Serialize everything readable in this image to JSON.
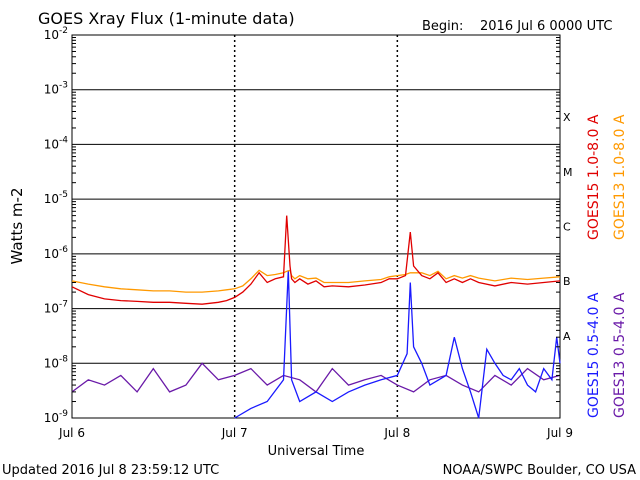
{
  "header": {
    "title": "GOES Xray Flux (1-minute data)",
    "begin_label": "Begin:",
    "begin_value": "2016 Jul 6 0000 UTC"
  },
  "footer": {
    "updated": "Updated 2016 Jul  8 23:59:12 UTC",
    "credit": "NOAA/SWPC Boulder, CO USA"
  },
  "colors": {
    "goes15_long": "#e00000",
    "goes13_long": "#ff9900",
    "goes15_short": "#1a1aff",
    "goes13_short": "#6a1aa8"
  },
  "chart_data": {
    "type": "line",
    "title": "GOES Xray Flux (1-minute data)",
    "xlabel": "Universal Time",
    "ylabel": "Watts m-2",
    "y_scale": "log",
    "ylim": [
      1e-09,
      0.01
    ],
    "y_ticks": [
      {
        "value": 0.01,
        "label": "10-2"
      },
      {
        "value": 0.001,
        "label": "10-3"
      },
      {
        "value": 0.0001,
        "label": "10-4"
      },
      {
        "value": 1e-05,
        "label": "10-5"
      },
      {
        "value": 1e-06,
        "label": "10-6"
      },
      {
        "value": 1e-07,
        "label": "10-7"
      },
      {
        "value": 1e-08,
        "label": "10-8"
      },
      {
        "value": 1e-09,
        "label": "10-9"
      }
    ],
    "x_unit": "days since 2016 Jul 6 0000 UTC",
    "xlim": [
      0,
      3
    ],
    "x_ticks": [
      {
        "value": 0,
        "label": "Jul 6"
      },
      {
        "value": 1,
        "label": "Jul 7"
      },
      {
        "value": 2,
        "label": "Jul 8"
      },
      {
        "value": 3,
        "label": "Jul 9"
      }
    ],
    "flare_classes": [
      {
        "label": "X",
        "value": 0.0001
      },
      {
        "label": "M",
        "value": 1e-05
      },
      {
        "label": "C",
        "value": 1e-06
      },
      {
        "label": "B",
        "value": 1e-07
      },
      {
        "label": "A",
        "value": 1e-08
      }
    ],
    "grid": true,
    "legend_position": "right",
    "series": [
      {
        "name": "GOES15 1.0-8.0 A",
        "color": "#e00000",
        "x": [
          0,
          0.1,
          0.2,
          0.3,
          0.4,
          0.5,
          0.6,
          0.7,
          0.8,
          0.9,
          0.95,
          1.0,
          1.05,
          1.1,
          1.15,
          1.2,
          1.25,
          1.3,
          1.32,
          1.34,
          1.35,
          1.37,
          1.4,
          1.45,
          1.5,
          1.55,
          1.6,
          1.7,
          1.8,
          1.9,
          1.95,
          2.0,
          2.05,
          2.08,
          2.1,
          2.15,
          2.2,
          2.25,
          2.3,
          2.35,
          2.4,
          2.45,
          2.5,
          2.6,
          2.7,
          2.8,
          2.9,
          3.0
        ],
        "values": [
          2.5e-07,
          1.8e-07,
          1.5e-07,
          1.4e-07,
          1.35e-07,
          1.3e-07,
          1.3e-07,
          1.25e-07,
          1.2e-07,
          1.3e-07,
          1.4e-07,
          1.6e-07,
          2e-07,
          2.8e-07,
          4.5e-07,
          3e-07,
          3.5e-07,
          3.8e-07,
          5e-06,
          6e-07,
          3.5e-07,
          3e-07,
          3.5e-07,
          2.8e-07,
          3.2e-07,
          2.5e-07,
          2.6e-07,
          2.5e-07,
          2.7e-07,
          3e-07,
          3.5e-07,
          3.5e-07,
          4e-07,
          2.5e-06,
          6e-07,
          4e-07,
          3.5e-07,
          4.5e-07,
          3e-07,
          3.5e-07,
          3e-07,
          3.5e-07,
          3e-07,
          2.6e-07,
          3e-07,
          2.8e-07,
          3e-07,
          3.2e-07
        ]
      },
      {
        "name": "GOES13 1.0-8.0 A",
        "color": "#ff9900",
        "x": [
          0,
          0.1,
          0.2,
          0.3,
          0.4,
          0.5,
          0.6,
          0.7,
          0.8,
          0.9,
          0.95,
          1.0,
          1.05,
          1.1,
          1.15,
          1.2,
          1.25,
          1.3,
          1.32,
          1.34,
          1.35,
          1.37,
          1.4,
          1.45,
          1.5,
          1.55,
          1.6,
          1.7,
          1.8,
          1.9,
          1.95,
          2.0,
          2.05,
          2.08,
          2.1,
          2.15,
          2.2,
          2.25,
          2.3,
          2.35,
          2.4,
          2.45,
          2.5,
          2.6,
          2.7,
          2.8,
          2.9,
          3.0
        ],
        "values": [
          3.2e-07,
          2.8e-07,
          2.5e-07,
          2.3e-07,
          2.2e-07,
          2.1e-07,
          2.1e-07,
          2e-07,
          2e-07,
          2.1e-07,
          2.2e-07,
          2.3e-07,
          2.6e-07,
          3.5e-07,
          5e-07,
          4e-07,
          4.2e-07,
          4.5e-07,
          4.8e-07,
          5e-07,
          4e-07,
          3.5e-07,
          4e-07,
          3.5e-07,
          3.6e-07,
          3e-07,
          3e-07,
          3e-07,
          3.2e-07,
          3.4e-07,
          3.8e-07,
          4e-07,
          4.2e-07,
          4.5e-07,
          4.5e-07,
          4.5e-07,
          4e-07,
          4.8e-07,
          3.5e-07,
          4e-07,
          3.6e-07,
          4e-07,
          3.6e-07,
          3.2e-07,
          3.6e-07,
          3.4e-07,
          3.6e-07,
          3.8e-07
        ]
      },
      {
        "name": "GOES15 0.5-4.0 A",
        "color": "#1a1aff",
        "x": [
          1.0,
          1.1,
          1.2,
          1.3,
          1.33,
          1.35,
          1.4,
          1.5,
          1.6,
          1.7,
          1.8,
          1.9,
          2.0,
          2.06,
          2.08,
          2.1,
          2.15,
          2.2,
          2.3,
          2.35,
          2.4,
          2.45,
          2.5,
          2.55,
          2.6,
          2.65,
          2.7,
          2.75,
          2.8,
          2.85,
          2.9,
          2.95,
          2.98,
          3.0
        ],
        "values": [
          1e-09,
          1.5e-09,
          2e-09,
          5e-09,
          5e-07,
          5e-09,
          2e-09,
          3e-09,
          2e-09,
          3e-09,
          4e-09,
          5e-09,
          6e-09,
          1.5e-08,
          3e-07,
          2e-08,
          1e-08,
          4e-09,
          6e-09,
          3e-08,
          8e-09,
          3e-09,
          1e-09,
          1.8e-08,
          1e-08,
          6e-09,
          5e-09,
          8e-09,
          4e-09,
          3e-09,
          8e-09,
          5e-09,
          3e-08,
          1e-08
        ]
      },
      {
        "name": "GOES13 0.5-4.0 A",
        "color": "#6a1aa8",
        "x": [
          0,
          0.1,
          0.2,
          0.3,
          0.4,
          0.5,
          0.6,
          0.7,
          0.8,
          0.9,
          1.0,
          1.1,
          1.2,
          1.3,
          1.4,
          1.5,
          1.6,
          1.7,
          1.8,
          1.9,
          2.0,
          2.1,
          2.2,
          2.3,
          2.4,
          2.5,
          2.6,
          2.7,
          2.8,
          2.9,
          3.0
        ],
        "values": [
          3e-09,
          5e-09,
          4e-09,
          6e-09,
          3e-09,
          8e-09,
          3e-09,
          4e-09,
          1e-08,
          5e-09,
          6e-09,
          8e-09,
          4e-09,
          6e-09,
          5e-09,
          3e-09,
          8e-09,
          4e-09,
          5e-09,
          6e-09,
          4e-09,
          3e-09,
          5e-09,
          6e-09,
          4e-09,
          3e-09,
          6e-09,
          4e-09,
          8e-09,
          5e-09,
          6e-09
        ]
      }
    ]
  }
}
